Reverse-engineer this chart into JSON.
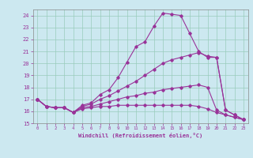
{
  "xlabel": "Windchill (Refroidissement éolien,°C)",
  "bg_color": "#cce8f0",
  "line_color": "#993399",
  "grid_color": "#99ccbb",
  "xlim": [
    -0.5,
    23.5
  ],
  "ylim": [
    15,
    24.5
  ],
  "xticks": [
    0,
    1,
    2,
    3,
    4,
    5,
    6,
    7,
    8,
    9,
    10,
    11,
    12,
    13,
    14,
    15,
    16,
    17,
    18,
    19,
    20,
    21,
    22,
    23
  ],
  "yticks": [
    15,
    16,
    17,
    18,
    19,
    20,
    21,
    22,
    23,
    24
  ],
  "line1_x": [
    0,
    1,
    2,
    3,
    4,
    5,
    6,
    7,
    8,
    9,
    10,
    11,
    12,
    13,
    14,
    15,
    16,
    17,
    18,
    19,
    20,
    21,
    22,
    23
  ],
  "line1_y": [
    17.0,
    16.4,
    16.3,
    16.3,
    15.9,
    16.5,
    16.7,
    17.4,
    17.8,
    18.8,
    20.1,
    21.4,
    21.8,
    23.1,
    24.2,
    24.1,
    24.0,
    22.5,
    21.0,
    20.5,
    20.5,
    16.1,
    15.7,
    15.3
  ],
  "line2_x": [
    0,
    1,
    2,
    3,
    4,
    5,
    6,
    7,
    8,
    9,
    10,
    11,
    12,
    13,
    14,
    15,
    16,
    17,
    18,
    19,
    20,
    21,
    22,
    23
  ],
  "line2_y": [
    17.0,
    16.4,
    16.3,
    16.3,
    15.9,
    16.4,
    16.6,
    17.0,
    17.3,
    17.7,
    18.1,
    18.5,
    19.0,
    19.5,
    20.0,
    20.3,
    20.5,
    20.7,
    20.9,
    20.6,
    20.5,
    16.1,
    15.7,
    15.3
  ],
  "line3_x": [
    0,
    1,
    2,
    3,
    4,
    5,
    6,
    7,
    8,
    9,
    10,
    11,
    12,
    13,
    14,
    15,
    16,
    17,
    18,
    19,
    20,
    21,
    22,
    23
  ],
  "line3_y": [
    17.0,
    16.4,
    16.3,
    16.3,
    15.9,
    16.3,
    16.4,
    16.6,
    16.8,
    17.0,
    17.2,
    17.3,
    17.5,
    17.6,
    17.8,
    17.9,
    18.0,
    18.1,
    18.2,
    18.0,
    16.1,
    15.7,
    15.5,
    15.3
  ],
  "line4_x": [
    0,
    1,
    2,
    3,
    4,
    5,
    6,
    7,
    8,
    9,
    10,
    11,
    12,
    13,
    14,
    15,
    16,
    17,
    18,
    19,
    20,
    21,
    22,
    23
  ],
  "line4_y": [
    17.0,
    16.4,
    16.3,
    16.3,
    15.9,
    16.2,
    16.3,
    16.4,
    16.4,
    16.5,
    16.5,
    16.5,
    16.5,
    16.5,
    16.5,
    16.5,
    16.5,
    16.5,
    16.4,
    16.2,
    15.9,
    15.7,
    15.5,
    15.3
  ]
}
